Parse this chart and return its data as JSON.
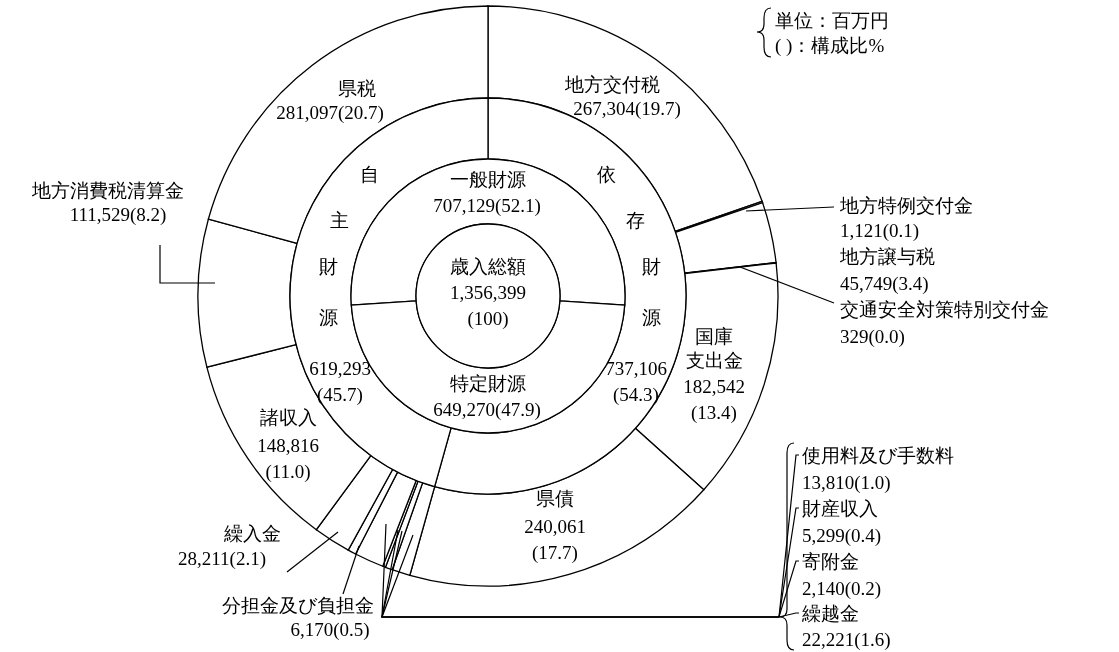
{
  "chart_data": [
    {
      "type": "donut",
      "annotations": [
        "単位：百万円",
        "(  )：構成比%"
      ],
      "categories": [
        "地方交付税",
        "地方特例交付金",
        "地方譲与税",
        "交通安全対策特別交付金",
        "国庫支出金",
        "県債",
        "使用料及び手数料",
        "財産収入",
        "寄附金",
        "繰越金",
        "分担金及び負担金",
        "繰入金",
        "諸収入",
        "地方消費税清算金",
        "県税"
      ],
      "values": [
        267304,
        1121,
        45749,
        329,
        182542,
        240061,
        13810,
        5299,
        2140,
        22221,
        6170,
        28211,
        148816,
        111529,
        281097
      ],
      "value_labels": [
        "267,304(19.7)",
        "1,121(0.1)",
        "45,749(3.4)",
        "329(0.0)",
        "182,542(13.4)",
        "240,061(17.7)",
        "13,810(1.0)",
        "5,299(0.4)",
        "2,140(0.2)",
        "22,221(1.6)",
        "6,170(0.5)",
        "28,211(2.1)",
        "148,816(11.0)",
        "111,529(8.2)",
        "281,097(20.7)"
      ],
      "colors": [
        "#ffffff",
        "#ffffff",
        "#ffffff",
        "#ffffff",
        "#ffffff",
        "#ffffff",
        "#ffffff",
        "#ffffff",
        "#ffffff",
        "#ffffff",
        "#ffffff",
        "#ffffff",
        "#ffffff",
        "#ffffff",
        "#ffffff"
      ]
    },
    {
      "type": "donut",
      "categories": [
        "依存財源",
        "自主財源"
      ],
      "values": [
        737106,
        619293
      ],
      "value_labels": [
        "737,106(54.3)",
        "619,293(45.7)"
      ],
      "colors": [
        "#ffffff",
        "#ffffff"
      ]
    },
    {
      "type": "donut",
      "categories": [
        "一般財源",
        "特定財源"
      ],
      "values": [
        707129,
        649270
      ],
      "value_labels": [
        "707,129(52.1)",
        "649,270(47.9)"
      ],
      "colors": [
        "#ffffff",
        "#ffffff"
      ]
    },
    {
      "type": "pie",
      "categories": [
        "歳入総額"
      ],
      "values": [
        1356399
      ],
      "value_labels": [
        "1,356,399(100)"
      ],
      "colors": [
        "#ffffff"
      ]
    }
  ]
}
